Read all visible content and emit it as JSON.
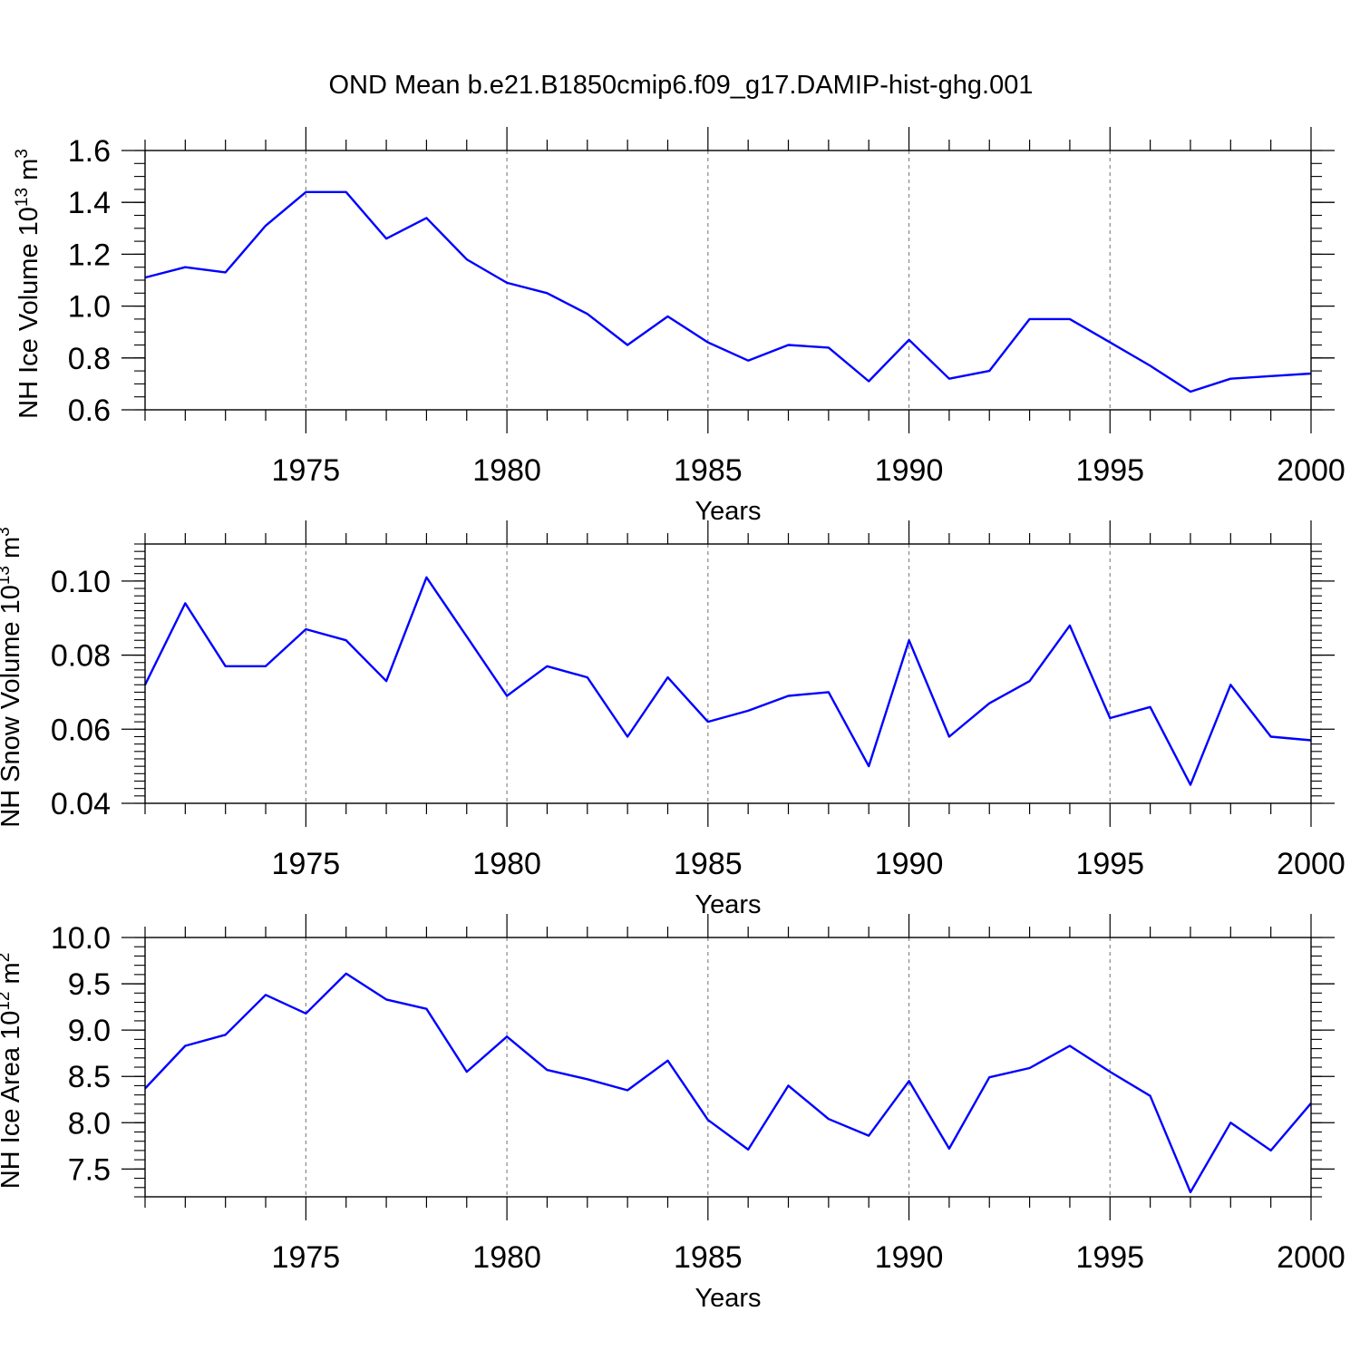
{
  "figure": {
    "title": "OND Mean b.e21.B1850cmip6.f09_g17.DAMIP-hist-ghg.001"
  },
  "style": {
    "line_color": "#0000ff",
    "axis_color": "#000000",
    "grid_color": "#888888"
  },
  "chart_data": [
    {
      "type": "line",
      "xlabel": "Years",
      "ylabel_main": "NH Ice Volume 10",
      "ylabel_exp": "13",
      "ylabel_unit": " m",
      "ylabel_unit_exp": "3",
      "xlim": [
        1971,
        2000
      ],
      "ylim": [
        0.6,
        1.6
      ],
      "yticks": [
        0.6,
        0.8,
        1.0,
        1.2,
        1.4,
        1.6
      ],
      "ytick_labels": [
        "0.6",
        "0.8",
        "1.0",
        "1.2",
        "1.4",
        "1.6"
      ],
      "xticks": [
        1975,
        1980,
        1985,
        1990,
        1995,
        2000
      ],
      "xtick_labels": [
        "1975",
        "1980",
        "1985",
        "1990",
        "1995",
        "2000"
      ],
      "grid": "vertical dashed at major x ticks",
      "x": [
        1971,
        1972,
        1973,
        1974,
        1975,
        1976,
        1977,
        1978,
        1979,
        1980,
        1981,
        1982,
        1983,
        1984,
        1985,
        1986,
        1987,
        1988,
        1989,
        1990,
        1991,
        1992,
        1993,
        1994,
        1995,
        1996,
        1997,
        1998,
        1999,
        2000
      ],
      "y": [
        1.11,
        1.15,
        1.13,
        1.31,
        1.44,
        1.44,
        1.26,
        1.34,
        1.18,
        1.09,
        1.05,
        0.97,
        0.85,
        0.96,
        0.86,
        0.79,
        0.85,
        0.84,
        0.71,
        0.87,
        0.72,
        0.75,
        0.95,
        0.95,
        0.86,
        0.77,
        0.67,
        0.72,
        0.73,
        0.74
      ]
    },
    {
      "type": "line",
      "xlabel": "Years",
      "ylabel_main": "NH Snow Volume 10",
      "ylabel_exp": "13",
      "ylabel_unit": " m",
      "ylabel_unit_exp": "3",
      "xlim": [
        1971,
        2000
      ],
      "ylim": [
        0.04,
        0.11
      ],
      "yticks": [
        0.04,
        0.06,
        0.08,
        0.1
      ],
      "ytick_labels": [
        "0.04",
        "0.06",
        "0.08",
        "0.10"
      ],
      "xticks": [
        1975,
        1980,
        1985,
        1990,
        1995,
        2000
      ],
      "xtick_labels": [
        "1975",
        "1980",
        "1985",
        "1990",
        "1995",
        "2000"
      ],
      "grid": "vertical dashed at major x ticks",
      "x": [
        1971,
        1972,
        1973,
        1974,
        1975,
        1976,
        1977,
        1978,
        1979,
        1980,
        1981,
        1982,
        1983,
        1984,
        1985,
        1986,
        1987,
        1988,
        1989,
        1990,
        1991,
        1992,
        1993,
        1994,
        1995,
        1996,
        1997,
        1998,
        1999,
        2000
      ],
      "y": [
        0.072,
        0.094,
        0.077,
        0.077,
        0.087,
        0.084,
        0.073,
        0.101,
        0.085,
        0.069,
        0.077,
        0.074,
        0.058,
        0.074,
        0.062,
        0.065,
        0.069,
        0.07,
        0.05,
        0.084,
        0.058,
        0.067,
        0.073,
        0.088,
        0.063,
        0.066,
        0.045,
        0.072,
        0.058,
        0.057
      ]
    },
    {
      "type": "line",
      "xlabel": "Years",
      "ylabel_main": "NH Ice Area 10",
      "ylabel_exp": "12",
      "ylabel_unit": " m",
      "ylabel_unit_exp": "2",
      "xlim": [
        1971,
        2000
      ],
      "ylim": [
        7.2,
        10.0
      ],
      "yticks": [
        7.5,
        8.0,
        8.5,
        9.0,
        9.5,
        10.0
      ],
      "ytick_labels": [
        "7.5",
        "8.0",
        "8.5",
        "9.0",
        "9.5",
        "10.0"
      ],
      "xticks": [
        1975,
        1980,
        1985,
        1990,
        1995,
        2000
      ],
      "xtick_labels": [
        "1975",
        "1980",
        "1985",
        "1990",
        "1995",
        "2000"
      ],
      "grid": "vertical dashed at major x ticks",
      "x": [
        1971,
        1972,
        1973,
        1974,
        1975,
        1976,
        1977,
        1978,
        1979,
        1980,
        1981,
        1982,
        1983,
        1984,
        1985,
        1986,
        1987,
        1988,
        1989,
        1990,
        1991,
        1992,
        1993,
        1994,
        1995,
        1996,
        1997,
        1998,
        1999,
        2000
      ],
      "y": [
        8.37,
        8.83,
        8.95,
        9.38,
        9.18,
        9.61,
        9.33,
        9.23,
        8.55,
        8.93,
        8.57,
        8.47,
        8.35,
        8.67,
        8.03,
        7.71,
        8.4,
        8.04,
        7.86,
        8.45,
        7.72,
        8.49,
        8.59,
        8.83,
        8.55,
        8.29,
        7.25,
        8.0,
        7.7,
        8.21
      ]
    }
  ]
}
